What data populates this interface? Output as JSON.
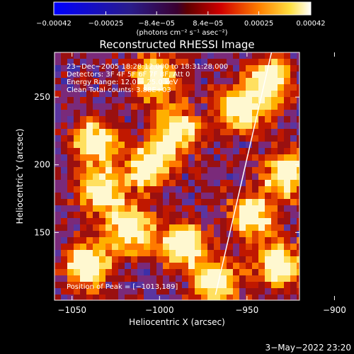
{
  "chart_data": {
    "type": "heatmap",
    "title": "Reconstructed RHESSI Image",
    "xlabel": "Heliocentric X (arcsec)",
    "ylabel": "Heliocentric Y (arcsec)",
    "xlim": [
      -1060,
      -920
    ],
    "ylim": [
      100,
      283
    ],
    "x_ticks": [
      -1050,
      -1000,
      -950,
      -900
    ],
    "x_tick_labels": [
      "−1050",
      "−1000",
      "−950",
      "−900"
    ],
    "y_ticks": [
      150,
      200,
      250
    ],
    "y_tick_labels": [
      "150",
      "200",
      "250"
    ],
    "colorbar": {
      "range": [
        -0.00042,
        0.00042
      ],
      "ticks": [
        -0.00042,
        -0.00025,
        -8.4e-05,
        8.4e-05,
        0.00025,
        0.00042
      ],
      "tick_labels": [
        "−0.00042",
        "−0.00025",
        "−8.4e−05",
        "8.4e−05",
        "0.00025",
        "0.00042"
      ],
      "units_label": "(photons cm⁻² s⁻¹ asec⁻²)",
      "colormap": [
        "#0000ff",
        "#3a2cb0",
        "#6a3aa8",
        "#ff0000",
        "#ff7a00",
        "#ffd000",
        "#ffffff"
      ]
    },
    "annotations": {
      "time_range": "23−Dec−2005 18:28:12.000 to 18:31:28.000",
      "detectors": "Detectors: 3F 4F 5F 6F 7F 8F, Att 0",
      "energy": "Energy Range: 12.0 − 25.0 keV",
      "method": "Clean     Total counts: 3.88E+03",
      "peak": "Position of Peak = [−1013,189]"
    },
    "limb_line": {
      "x": [
        -968,
        -936
      ],
      "y": [
        104,
        283
      ]
    },
    "grid": false
  },
  "footer": {
    "date": "3−May−2022 23:20"
  }
}
